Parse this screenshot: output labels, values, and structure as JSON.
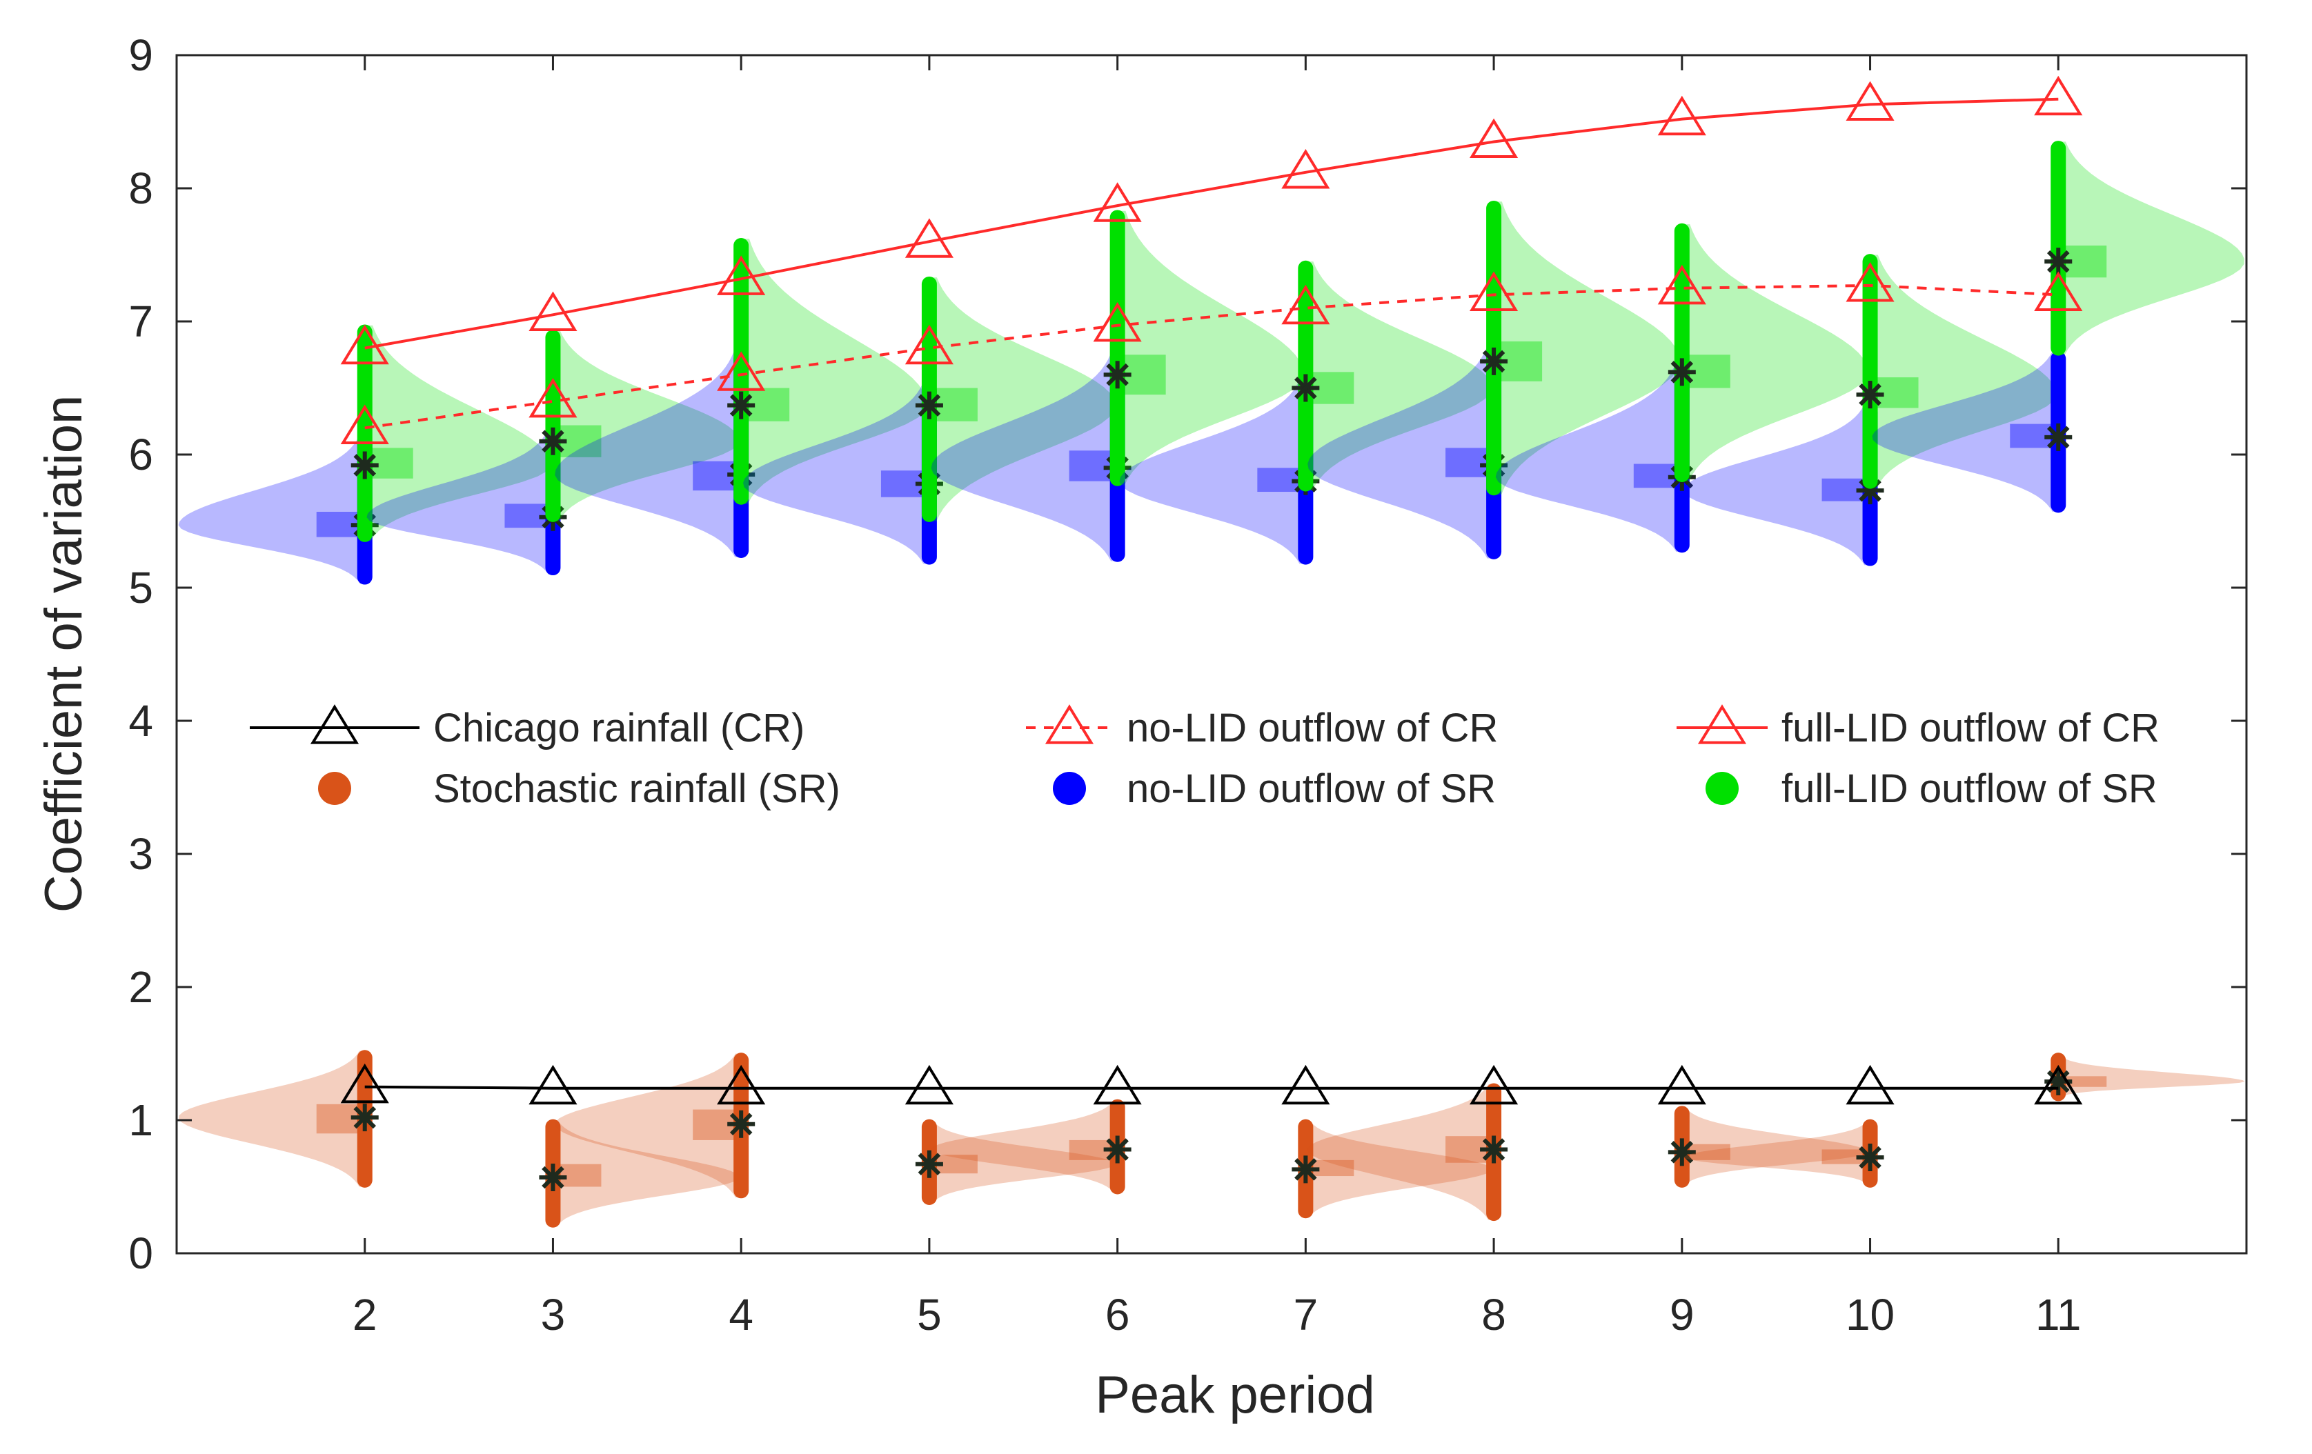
{
  "chart_data": {
    "type": "line",
    "xlabel": "Peak period",
    "ylabel": "Coefficient of variation",
    "xlim": [
      1,
      12
    ],
    "ylim": [
      0,
      9
    ],
    "x": [
      2,
      3,
      4,
      5,
      6,
      7,
      8,
      9,
      10,
      11
    ],
    "x_tick_labels": [
      "2",
      "3",
      "4",
      "5",
      "6",
      "7",
      "8",
      "9",
      "10",
      "11"
    ],
    "y_ticks": [
      0,
      1,
      2,
      3,
      4,
      5,
      6,
      7,
      8,
      9
    ],
    "y_tick_labels": [
      "0",
      "1",
      "2",
      "3",
      "4",
      "5",
      "6",
      "7",
      "8",
      "9"
    ],
    "series": [
      {
        "key": "cr",
        "name": "Chicago rainfall (CR)",
        "kind": "line",
        "color": "#000000",
        "dash": false,
        "values": [
          1.25,
          1.24,
          1.24,
          1.24,
          1.24,
          1.24,
          1.24,
          1.24,
          1.24,
          1.24
        ]
      },
      {
        "key": "nolid_cr",
        "name": "no-LID outflow of CR",
        "kind": "line",
        "color": "#ff2a2a",
        "dash": true,
        "values": [
          6.2,
          6.4,
          6.6,
          6.8,
          6.97,
          7.1,
          7.2,
          7.25,
          7.27,
          7.2
        ]
      },
      {
        "key": "fulllid_cr",
        "name": "full-LID outflow of CR",
        "kind": "line",
        "color": "#ff2a2a",
        "dash": false,
        "values": [
          6.8,
          7.05,
          7.32,
          7.6,
          7.87,
          8.12,
          8.35,
          8.52,
          8.63,
          8.67
        ]
      },
      {
        "key": "sr",
        "name": "Stochastic rainfall (SR)",
        "kind": "violin",
        "color": "#d95319",
        "median": [
          1.02,
          0.57,
          0.97,
          0.67,
          0.78,
          0.63,
          0.78,
          0.76,
          0.72,
          1.29
        ],
        "lower": [
          0.55,
          0.25,
          0.47,
          0.42,
          0.5,
          0.32,
          0.3,
          0.55,
          0.55,
          1.2
        ],
        "upper": [
          1.47,
          0.95,
          1.45,
          0.95,
          1.1,
          0.95,
          1.22,
          1.05,
          0.95,
          1.45
        ],
        "q1": [
          0.9,
          0.5,
          0.85,
          0.6,
          0.7,
          0.58,
          0.68,
          0.7,
          0.67,
          1.25
        ],
        "q3": [
          1.12,
          0.67,
          1.08,
          0.74,
          0.85,
          0.7,
          0.88,
          0.82,
          0.78,
          1.33
        ]
      },
      {
        "key": "nolid_sr",
        "name": "no-LID outflow of SR",
        "kind": "violin",
        "color": "#0000ff",
        "median": [
          5.47,
          5.53,
          5.85,
          5.78,
          5.9,
          5.8,
          5.92,
          5.83,
          5.73,
          6.13
        ],
        "lower": [
          5.08,
          5.15,
          5.28,
          5.23,
          5.25,
          5.23,
          5.27,
          5.32,
          5.22,
          5.62
        ],
        "upper": [
          6.08,
          6.12,
          6.72,
          6.48,
          6.7,
          6.5,
          6.75,
          6.62,
          6.32,
          6.72
        ],
        "q1": [
          5.38,
          5.45,
          5.73,
          5.68,
          5.8,
          5.72,
          5.83,
          5.75,
          5.65,
          6.05
        ],
        "q3": [
          5.57,
          5.63,
          5.95,
          5.88,
          6.03,
          5.9,
          6.05,
          5.93,
          5.82,
          6.23
        ]
      },
      {
        "key": "fulllid_sr",
        "name": "full-LID outflow of SR",
        "kind": "violin",
        "color": "#00e000",
        "median": [
          5.92,
          6.1,
          6.37,
          6.37,
          6.6,
          6.5,
          6.7,
          6.62,
          6.45,
          7.45
        ],
        "lower": [
          5.4,
          5.55,
          5.68,
          5.55,
          5.82,
          5.78,
          5.75,
          5.85,
          5.8,
          6.8
        ],
        "upper": [
          6.92,
          6.88,
          7.57,
          7.28,
          7.78,
          7.4,
          7.85,
          7.68,
          7.45,
          8.3
        ],
        "q1": [
          5.82,
          5.98,
          6.25,
          6.25,
          6.45,
          6.38,
          6.55,
          6.5,
          6.35,
          7.33
        ],
        "q3": [
          6.05,
          6.22,
          6.5,
          6.5,
          6.75,
          6.62,
          6.85,
          6.75,
          6.58,
          7.57
        ]
      }
    ],
    "legend_position": "middle",
    "grid": false
  }
}
